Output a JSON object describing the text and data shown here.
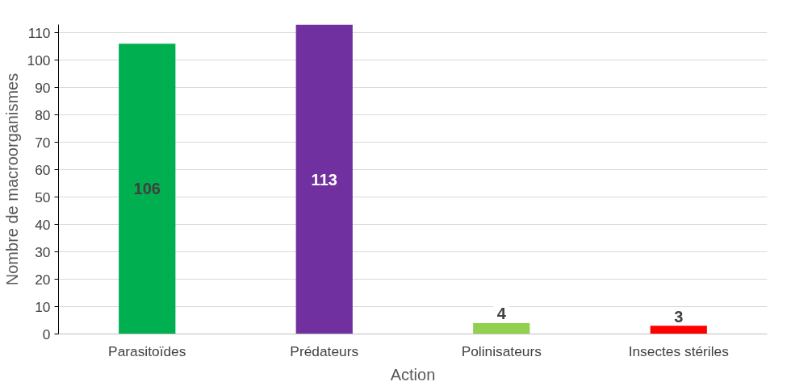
{
  "chart_data": {
    "type": "bar",
    "xlabel": "Action",
    "ylabel": "Nombre de macroorganismes",
    "categories": [
      "Parasitoïdes",
      "Prédateurs",
      "Polinisateurs",
      "Insectes stériles"
    ],
    "values": [
      106,
      113,
      4,
      3
    ],
    "colors": [
      "#00b050",
      "#7030a0",
      "#92d050",
      "#ff0000"
    ],
    "ylim": [
      0,
      113
    ],
    "yticks": [
      0,
      10,
      20,
      30,
      40,
      50,
      60,
      70,
      80,
      90,
      100,
      110
    ],
    "grid": "y",
    "data_labels": true
  }
}
